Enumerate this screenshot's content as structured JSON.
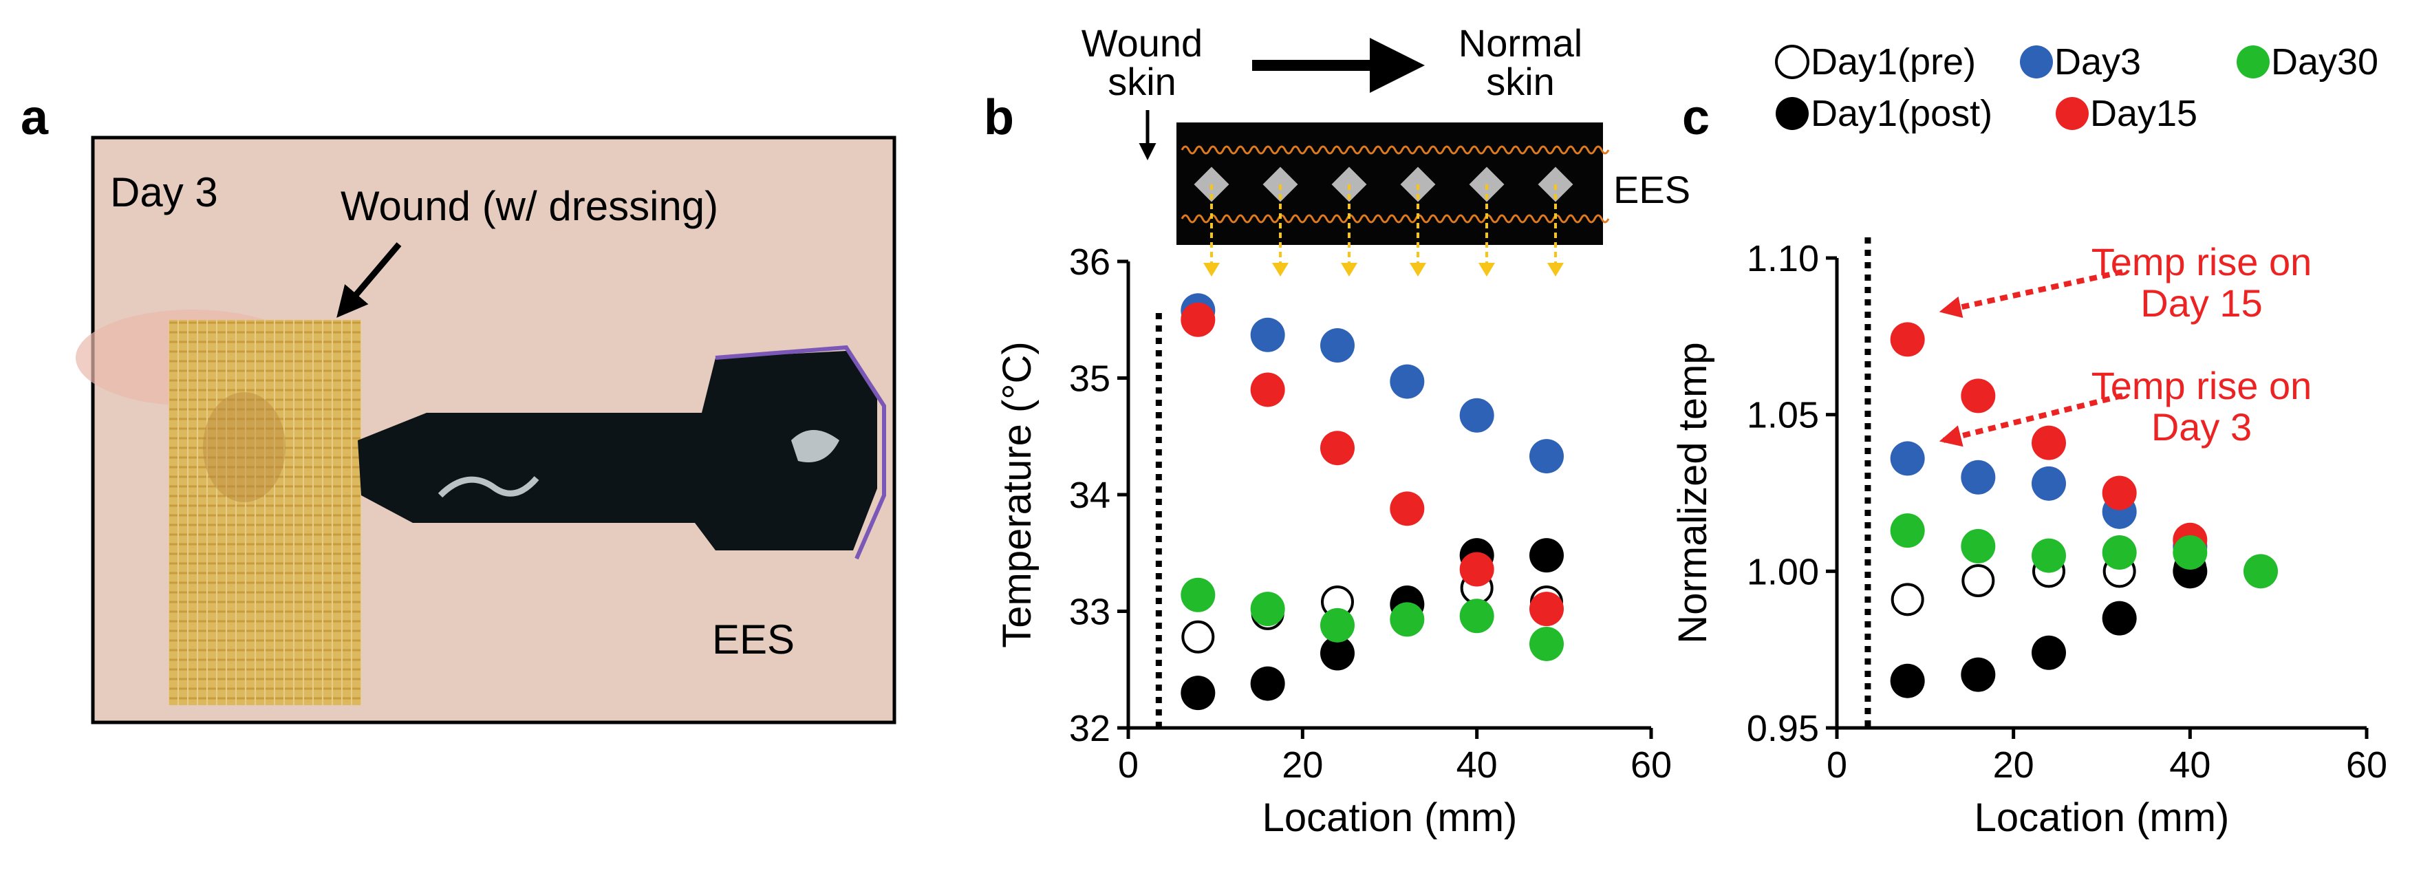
{
  "panels": {
    "a": {
      "letter": "a",
      "photo_labels": {
        "day": "Day 3",
        "wound": "Wound (w/ dressing)",
        "device": "EES"
      },
      "colors": {
        "skin": "#e6cbbf",
        "dressing": "#d9b55a",
        "device": "#0c1418",
        "marker": "#7b57b8"
      }
    },
    "b": {
      "letter": "b",
      "annotation": {
        "left_line1": "Wound",
        "left_line2": "skin",
        "right_line1": "Normal",
        "right_line2": "skin",
        "device": "EES"
      },
      "chart_data": {
        "type": "scatter",
        "xlabel": "Location (mm)",
        "ylabel": "Temperature (°C)",
        "xlim": [
          0,
          60
        ],
        "ylim": [
          32,
          36
        ],
        "xticks": [
          0,
          20,
          40,
          60
        ],
        "yticks": [
          32,
          33,
          34,
          35,
          36
        ],
        "wound_boundary_x": 3.5,
        "series": [
          {
            "name": "Day1(pre)",
            "style": "open",
            "color": "#000000",
            "x": [
              8,
              16,
              24,
              32,
              40,
              48
            ],
            "y": [
              32.78,
              32.98,
              33.08,
              33.08,
              33.2,
              33.08
            ]
          },
          {
            "name": "Day1(post)",
            "style": "filled",
            "color": "#000000",
            "x": [
              8,
              16,
              24,
              32,
              40,
              48
            ],
            "y": [
              32.3,
              32.38,
              32.64,
              33.06,
              33.48,
              33.48
            ]
          },
          {
            "name": "Day3",
            "style": "filled",
            "color": "#2e62b7",
            "x": [
              8,
              16,
              24,
              32,
              40,
              48
            ],
            "y": [
              35.58,
              35.37,
              35.28,
              34.97,
              34.68,
              34.33
            ]
          },
          {
            "name": "Day15",
            "style": "filled",
            "color": "#ec2323",
            "x": [
              8,
              16,
              24,
              32,
              40,
              48
            ],
            "y": [
              35.5,
              34.9,
              34.4,
              33.88,
              33.36,
              33.02
            ]
          },
          {
            "name": "Day30",
            "style": "filled",
            "color": "#22bb2c",
            "x": [
              8,
              16,
              24,
              32,
              40,
              48
            ],
            "y": [
              33.14,
              33.02,
              32.88,
              32.93,
              32.96,
              32.72
            ]
          }
        ]
      }
    },
    "c": {
      "letter": "c",
      "legend": [
        "Day1(pre)",
        "Day3",
        "Day30",
        "Day1(post)",
        "Day15"
      ],
      "annotations": [
        {
          "line1": "Temp rise on",
          "line2": "Day 15"
        },
        {
          "line1": "Temp rise on",
          "line2": "Day 3"
        }
      ],
      "chart_data": {
        "type": "scatter",
        "xlabel": "Location (mm)",
        "ylabel": "Normalized temp",
        "xlim": [
          0,
          60
        ],
        "ylim": [
          0.95,
          1.1
        ],
        "xticks": [
          0,
          20,
          40,
          60
        ],
        "yticks": [
          0.95,
          1.0,
          1.05,
          1.1
        ],
        "ytick_labels": [
          "0.95",
          "1.00",
          "1.05",
          "1.10"
        ],
        "wound_boundary_x": 3.5,
        "series": [
          {
            "name": "Day1(pre)",
            "style": "open",
            "color": "#000000",
            "x": [
              8,
              16,
              24,
              32,
              40
            ],
            "y": [
              0.991,
              0.997,
              1.0,
              1.0,
              1.001
            ]
          },
          {
            "name": "Day1(post)",
            "style": "filled",
            "color": "#000000",
            "x": [
              8,
              16,
              24,
              32,
              40
            ],
            "y": [
              0.965,
              0.967,
              0.974,
              0.985,
              1.0
            ]
          },
          {
            "name": "Day3",
            "style": "filled",
            "color": "#2e62b7",
            "x": [
              8,
              16,
              24,
              32,
              40
            ],
            "y": [
              1.036,
              1.03,
              1.028,
              1.019,
              1.008
            ]
          },
          {
            "name": "Day15",
            "style": "filled",
            "color": "#ec2323",
            "x": [
              8,
              16,
              24,
              32,
              40
            ],
            "y": [
              1.074,
              1.056,
              1.041,
              1.025,
              1.01
            ]
          },
          {
            "name": "Day30",
            "style": "filled",
            "color": "#22bb2c",
            "x": [
              8,
              16,
              24,
              32,
              40,
              48
            ],
            "y": [
              1.013,
              1.008,
              1.005,
              1.006,
              1.006,
              1.0
            ]
          }
        ]
      }
    }
  }
}
